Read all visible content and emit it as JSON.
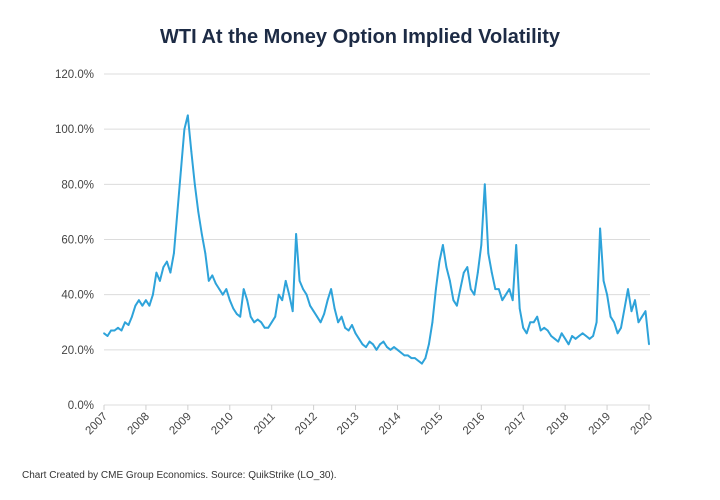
{
  "chart_data": {
    "type": "line",
    "title": "WTI At the Money Option Implied Volatility",
    "xlabel": "",
    "ylabel": "",
    "ylim": [
      0,
      120
    ],
    "xlim": [
      2007,
      2020
    ],
    "grid": true,
    "y_ticks": [
      "0.0%",
      "20.0%",
      "40.0%",
      "60.0%",
      "80.0%",
      "100.0%",
      "120.0%"
    ],
    "x_ticks": [
      "2007",
      "2008",
      "2009",
      "2010",
      "2011",
      "2012",
      "2013",
      "2014",
      "2015",
      "2016",
      "2017",
      "2018",
      "2019",
      "2020"
    ],
    "series": [
      {
        "name": "WTI ATM Implied Volatility",
        "color": "#2ea3da",
        "x_start": 2007,
        "step_years": 0.083333,
        "values": [
          26,
          25,
          27,
          27,
          28,
          27,
          30,
          29,
          32,
          36,
          38,
          36,
          38,
          36,
          40,
          48,
          45,
          50,
          52,
          48,
          55,
          70,
          85,
          100,
          105,
          92,
          80,
          70,
          62,
          55,
          45,
          47,
          44,
          42,
          40,
          42,
          38,
          35,
          33,
          32,
          42,
          38,
          32,
          30,
          31,
          30,
          28,
          28,
          30,
          32,
          40,
          38,
          45,
          40,
          34,
          62,
          45,
          42,
          40,
          36,
          34,
          32,
          30,
          33,
          38,
          42,
          35,
          30,
          32,
          28,
          27,
          29,
          26,
          24,
          22,
          21,
          23,
          22,
          20,
          22,
          23,
          21,
          20,
          21,
          20,
          19,
          18,
          18,
          17,
          17,
          16,
          15,
          17,
          22,
          30,
          42,
          52,
          58,
          50,
          45,
          38,
          36,
          42,
          48,
          50,
          42,
          40,
          48,
          58,
          80,
          55,
          48,
          42,
          42,
          38,
          40,
          42,
          38,
          58,
          35,
          28,
          26,
          30,
          30,
          32,
          27,
          28,
          27,
          25,
          24,
          23,
          26,
          24,
          22,
          25,
          24,
          25,
          26,
          25,
          24,
          25,
          30,
          64,
          45,
          40,
          32,
          30,
          26,
          28,
          35,
          42,
          34,
          38,
          30,
          32,
          34,
          22
        ]
      }
    ]
  },
  "footer": "Chart Created by CME Group Economics.   Source: QuikStrike (LO_30)."
}
